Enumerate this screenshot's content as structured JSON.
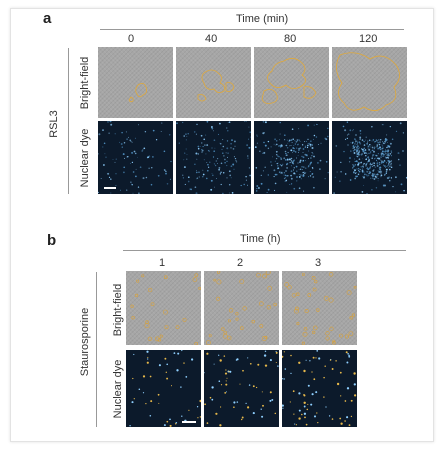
{
  "panel_a": {
    "letter": "a",
    "header": "Time (min)",
    "columns": [
      "0",
      "40",
      "80",
      "120"
    ],
    "group_label": "RSL3",
    "rows": [
      "Bright-field",
      "Nuclear dye"
    ]
  },
  "panel_b": {
    "letter": "b",
    "header": "Time (h)",
    "columns": [
      "1",
      "2",
      "3"
    ],
    "group_label": "Staurosporine",
    "rows": [
      "Bright-field",
      "Nuclear dye"
    ]
  },
  "colors": {
    "outline": "#e0a93a",
    "nuclear_bg": "#0c1a2b",
    "nuclear_dot": "#6fb6e6",
    "brightfield_bg": "#a6a6a6"
  }
}
